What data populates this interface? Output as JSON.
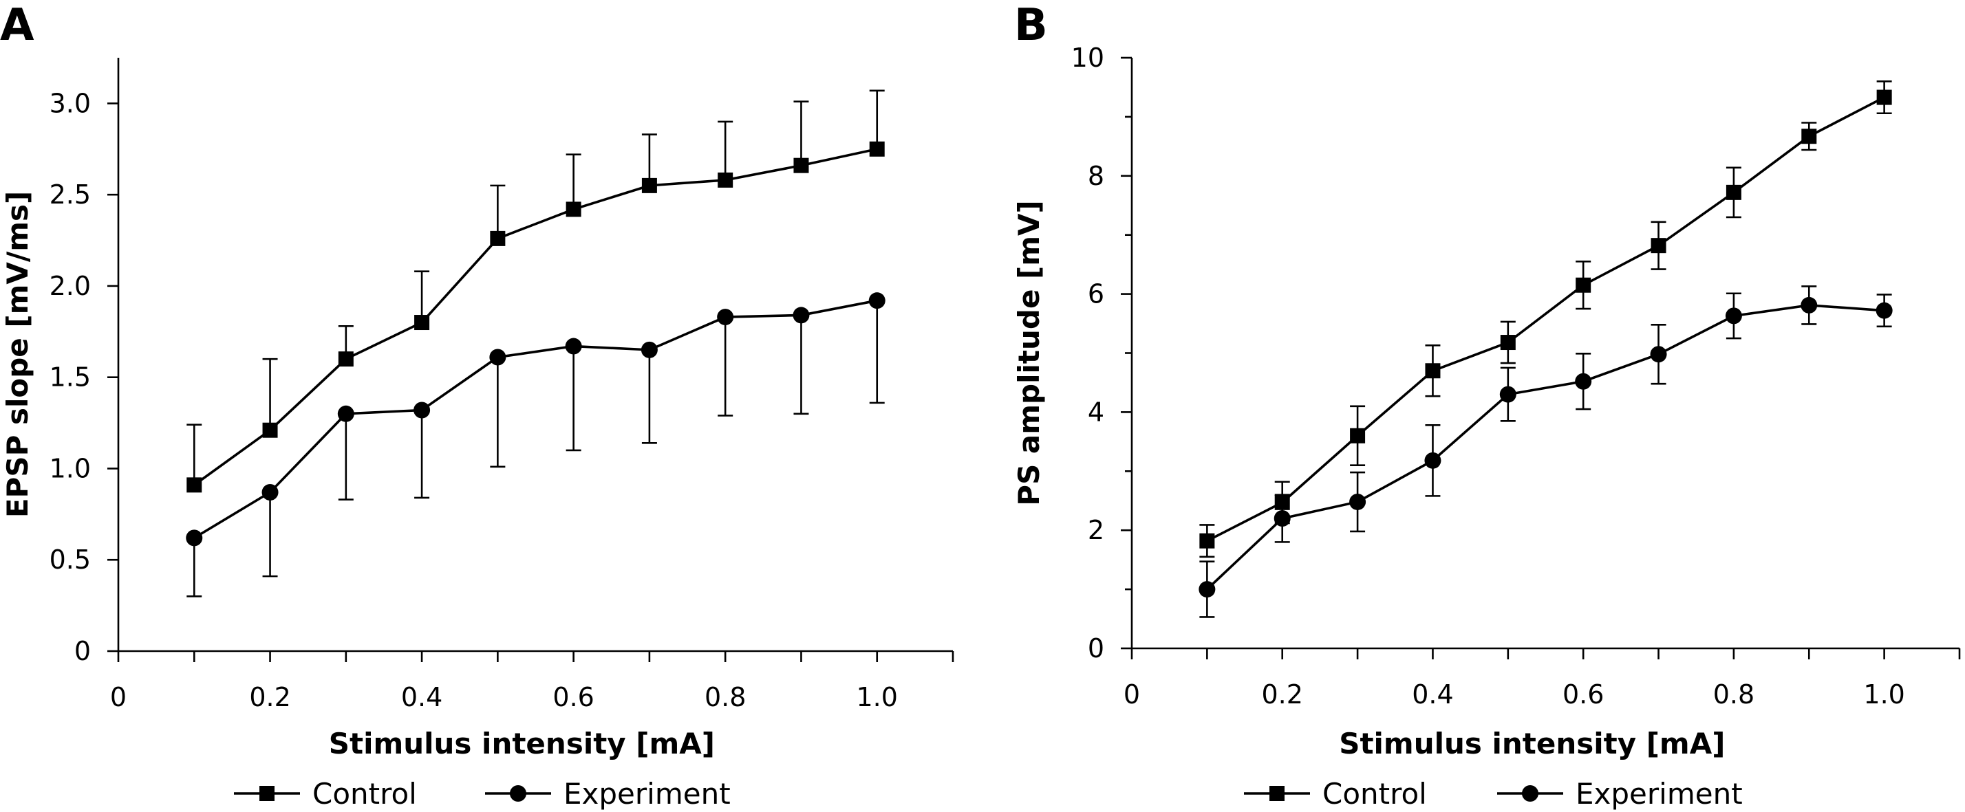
{
  "chart_data": [
    {
      "panel": "A",
      "type": "line",
      "xlabel": "Stimulus intensity [mA]",
      "ylabel": "EPSP slope [mV/ms]",
      "xlim": [
        0,
        1.1
      ],
      "ylim": [
        0,
        3.25
      ],
      "xticks": [
        0,
        0.2,
        0.4,
        0.6,
        0.8,
        1.0
      ],
      "xticklabels": [
        "0",
        "0.2",
        "0.4",
        "0.6",
        "0.8",
        "1.0"
      ],
      "yticks": [
        0,
        0.5,
        1.0,
        1.5,
        2.0,
        2.5,
        3.0
      ],
      "yticklabels": [
        "0",
        "0.5",
        "1.0",
        "1.5",
        "2.0",
        "2.5",
        "3.0"
      ],
      "error_direction": "up-control-down-experiment",
      "x": [
        0.1,
        0.2,
        0.3,
        0.4,
        0.5,
        0.6,
        0.7,
        0.8,
        0.9,
        1.0
      ],
      "series": [
        {
          "name": "Control",
          "marker": "square",
          "values": [
            0.91,
            1.21,
            1.6,
            1.8,
            2.26,
            2.42,
            2.55,
            2.58,
            2.66,
            2.75
          ],
          "error": [
            0.33,
            0.39,
            0.18,
            0.28,
            0.29,
            0.3,
            0.28,
            0.32,
            0.35,
            0.32
          ],
          "error_dir": "up"
        },
        {
          "name": "Experiment",
          "marker": "circle",
          "values": [
            0.62,
            0.87,
            1.3,
            1.32,
            1.61,
            1.67,
            1.65,
            1.83,
            1.84,
            1.92
          ],
          "error": [
            0.32,
            0.46,
            0.47,
            0.48,
            0.6,
            0.57,
            0.51,
            0.54,
            0.54,
            0.56
          ],
          "error_dir": "down"
        }
      ],
      "legend": "below"
    },
    {
      "panel": "B",
      "type": "line",
      "xlabel": "Stimulus intensity [mA]",
      "ylabel": "PS amplitude [mV]",
      "xlim": [
        0,
        1.1
      ],
      "ylim": [
        0,
        10
      ],
      "xticks": [
        0,
        0.2,
        0.4,
        0.6,
        0.8,
        1.0
      ],
      "xticklabels": [
        "0",
        "0.2",
        "0.4",
        "0.6",
        "0.8",
        "1.0"
      ],
      "yticks": [
        0,
        2,
        4,
        6,
        8,
        10
      ],
      "yticklabels": [
        "0",
        "2",
        "4",
        "6",
        "8",
        "10"
      ],
      "yminor": [
        1,
        3,
        5,
        7,
        9
      ],
      "x": [
        0.1,
        0.2,
        0.3,
        0.4,
        0.5,
        0.6,
        0.7,
        0.8,
        0.9,
        1.0
      ],
      "series": [
        {
          "name": "Control",
          "marker": "square",
          "values": [
            1.82,
            2.47,
            3.6,
            4.7,
            5.18,
            6.15,
            6.82,
            7.72,
            8.67,
            9.33
          ],
          "error": [
            0.27,
            0.35,
            0.5,
            0.43,
            0.35,
            0.4,
            0.4,
            0.42,
            0.23,
            0.27
          ],
          "error_dir": "both"
        },
        {
          "name": "Experiment",
          "marker": "circle",
          "values": [
            1.0,
            2.2,
            2.48,
            3.18,
            4.3,
            4.52,
            4.98,
            5.63,
            5.81,
            5.72
          ],
          "error": [
            0.47,
            0.4,
            0.5,
            0.6,
            0.45,
            0.47,
            0.5,
            0.38,
            0.32,
            0.27
          ],
          "error_dir": "both"
        }
      ],
      "legend": "below"
    }
  ]
}
